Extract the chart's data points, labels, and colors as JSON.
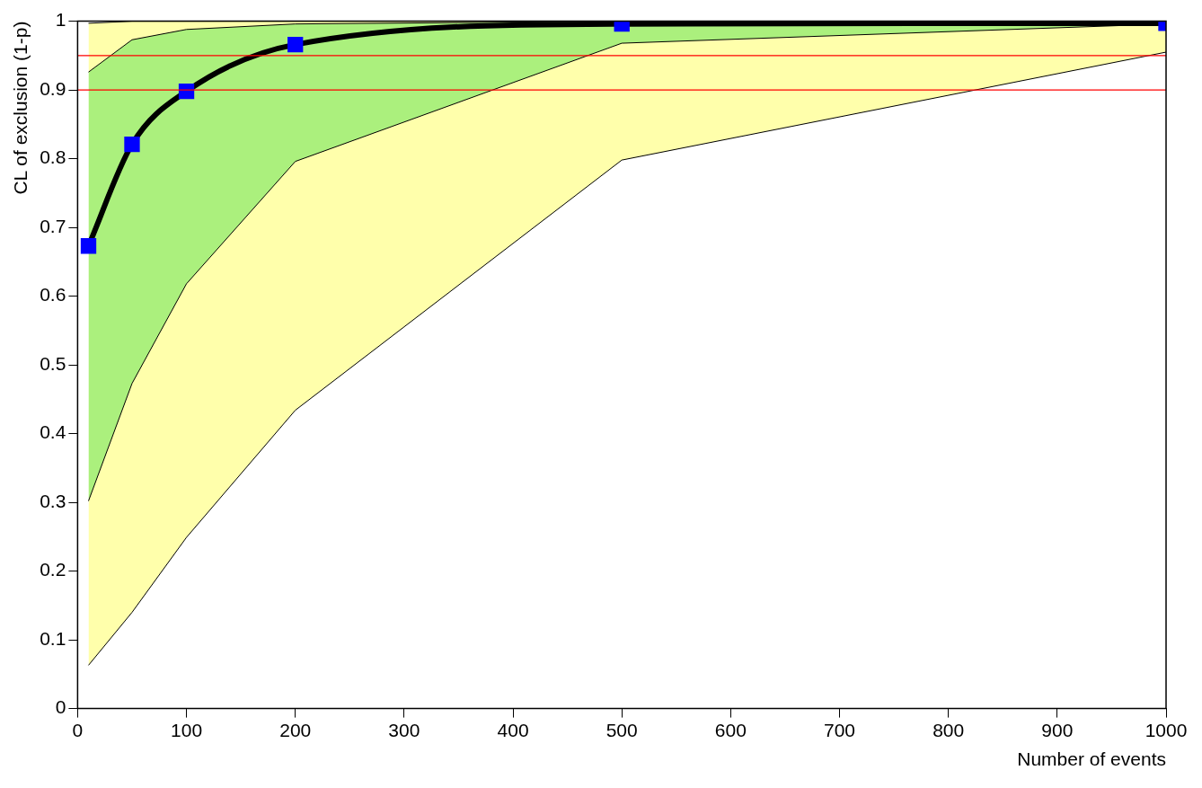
{
  "chart_data": {
    "type": "line",
    "xlabel": "Number of events",
    "ylabel": "CL of exclusion (1-p)",
    "x": [
      10,
      50,
      100,
      200,
      500,
      1000
    ],
    "series": [
      {
        "type": "area",
        "color": "#ffff44",
        "values": [
          null,
          null,
          null,
          null,
          null,
          null
        ],
        "lower": [
          0.063,
          0.14,
          0.249,
          0.434,
          0.798,
          0.955
        ],
        "upper": [
          0.997,
          1.0,
          1.0,
          1.0,
          1.0,
          1.0
        ]
      },
      {
        "type": "area",
        "color": "#44dd44",
        "values": [
          null,
          null,
          null,
          null,
          null,
          null
        ],
        "lower": [
          0.302,
          0.473,
          0.618,
          0.796,
          0.968,
          0.996
        ],
        "upper": [
          0.926,
          0.973,
          0.988,
          0.996,
          1.0,
          1.0
        ]
      },
      {
        "type": "line",
        "color": "#000000",
        "marker": "none",
        "values": [
          0.063,
          0.14,
          0.249,
          0.434,
          0.798,
          0.955
        ]
      },
      {
        "type": "line",
        "color": "#000000",
        "marker": "none",
        "values": [
          0.302,
          0.473,
          0.618,
          0.796,
          0.968,
          0.996
        ]
      },
      {
        "type": "line",
        "color": "#000000",
        "marker": "none",
        "values": [
          0.926,
          0.973,
          0.988,
          0.996,
          1.0,
          1.0
        ]
      },
      {
        "type": "line",
        "color": "#000000",
        "marker": "none",
        "values": [
          0.997,
          1.0,
          1.0,
          1.0,
          1.0,
          1.0
        ]
      },
      {
        "type": "line",
        "color": "#0000ff",
        "values": [
          0.673,
          0.821,
          0.898,
          0.966,
          0.996,
          0.997
        ]
      }
    ],
    "xlim": [
      0,
      1000
    ],
    "xticks": [
      0,
      100,
      200,
      300,
      400,
      500,
      600,
      700,
      800,
      900,
      1000
    ],
    "ylim": [
      0,
      1
    ],
    "yticks": [
      0,
      0.1,
      0.2,
      0.3,
      0.4,
      0.5,
      0.6,
      0.7,
      0.8,
      0.9,
      1
    ],
    "ref_lines": [
      {
        "axis": "y",
        "value": 0.9,
        "color": "#ff0000"
      },
      {
        "axis": "y",
        "value": 0.95,
        "color": "#ff0000"
      }
    ],
    "marker": "square",
    "grid": false,
    "legend": false
  }
}
